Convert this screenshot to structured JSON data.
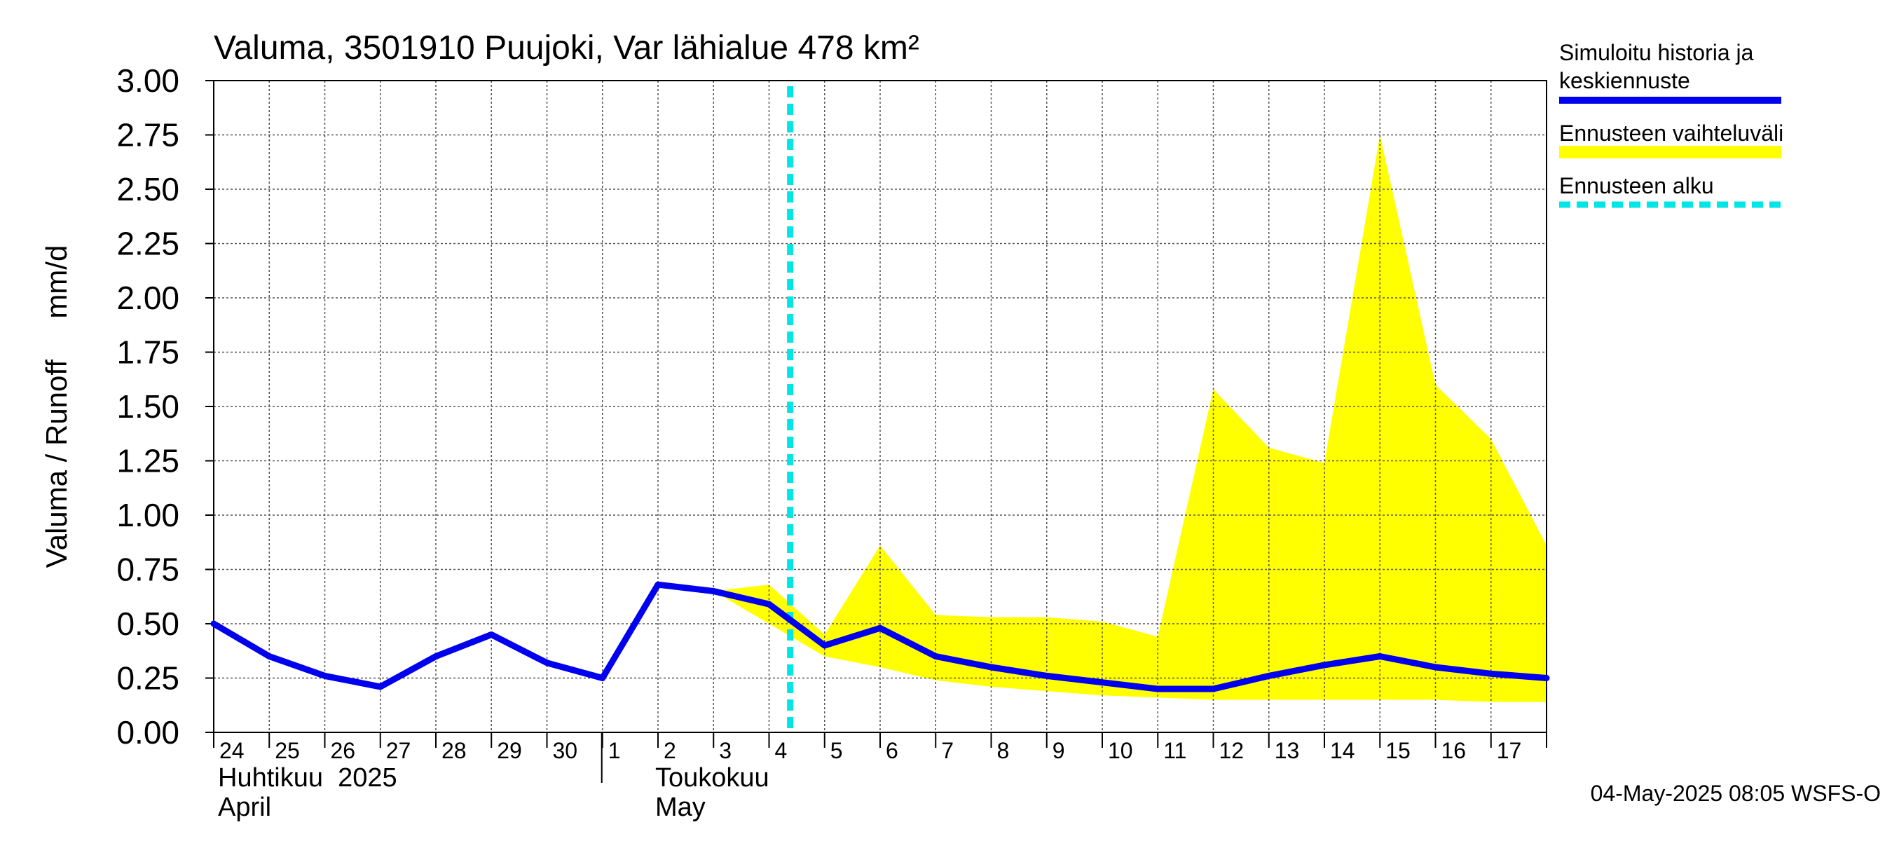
{
  "chart_data": {
    "type": "area",
    "title": "Valuma, 3501910 Puujoki, Var lähialue 478 km²",
    "ylabel": "Valuma / Runoff     mm/d",
    "ylim": [
      0,
      3
    ],
    "y_ticks": [
      "0.00",
      "0.25",
      "0.50",
      "0.75",
      "1.00",
      "1.25",
      "1.50",
      "1.75",
      "2.00",
      "2.25",
      "2.50",
      "2.75",
      "3.00"
    ],
    "x_day_labels": [
      "24",
      "25",
      "26",
      "27",
      "28",
      "29",
      "30",
      "1",
      "2",
      "3",
      "4",
      "5",
      "6",
      "7",
      "8",
      "9",
      "10",
      "11",
      "12",
      "13",
      "14",
      "15",
      "16",
      "17"
    ],
    "month_labels": [
      {
        "fi": "Huhtikuu  2025",
        "en": "April"
      },
      {
        "fi": "Toukokuu",
        "en": "May"
      }
    ],
    "x_start": "2025-04-24",
    "x_end": "2025-05-18",
    "forecast_start_day": 10.38,
    "series": [
      {
        "name": "Simuloitu historia ja keskiennuste",
        "color": "#0000ee",
        "points": [
          [
            0,
            0.5
          ],
          [
            1,
            0.35
          ],
          [
            2,
            0.26
          ],
          [
            3,
            0.21
          ],
          [
            4,
            0.35
          ],
          [
            5,
            0.45
          ],
          [
            6,
            0.32
          ],
          [
            7,
            0.25
          ],
          [
            8,
            0.68
          ],
          [
            9,
            0.65
          ],
          [
            10,
            0.59
          ],
          [
            11,
            0.4
          ],
          [
            12,
            0.48
          ],
          [
            13,
            0.35
          ],
          [
            14,
            0.3
          ],
          [
            15,
            0.26
          ],
          [
            16,
            0.23
          ],
          [
            17,
            0.2
          ],
          [
            18,
            0.2
          ],
          [
            19,
            0.26
          ],
          [
            20,
            0.31
          ],
          [
            21,
            0.35
          ],
          [
            22,
            0.3
          ],
          [
            23,
            0.27
          ],
          [
            24,
            0.25
          ]
        ]
      }
    ],
    "band": {
      "name": "Ennusteen vaihteluväli",
      "color": "#ffff00",
      "upper": [
        [
          9,
          0.65
        ],
        [
          10,
          0.68
        ],
        [
          11,
          0.45
        ],
        [
          12,
          0.86
        ],
        [
          13,
          0.54
        ],
        [
          14,
          0.53
        ],
        [
          15,
          0.53
        ],
        [
          16,
          0.51
        ],
        [
          17,
          0.44
        ],
        [
          18,
          1.58
        ],
        [
          19,
          1.31
        ],
        [
          20,
          1.24
        ],
        [
          21,
          2.75
        ],
        [
          22,
          1.6
        ],
        [
          23,
          1.35
        ],
        [
          24,
          0.86
        ]
      ],
      "lower": [
        [
          9,
          0.65
        ],
        [
          10,
          0.5
        ],
        [
          11,
          0.35
        ],
        [
          12,
          0.3
        ],
        [
          13,
          0.24
        ],
        [
          14,
          0.21
        ],
        [
          15,
          0.19
        ],
        [
          16,
          0.17
        ],
        [
          17,
          0.16
        ],
        [
          18,
          0.15
        ],
        [
          19,
          0.15
        ],
        [
          20,
          0.15
        ],
        [
          21,
          0.15
        ],
        [
          22,
          0.15
        ],
        [
          23,
          0.14
        ],
        [
          24,
          0.14
        ]
      ]
    },
    "legend": [
      {
        "label": "Simuloitu historia ja keskiennuste",
        "color": "#0000ee",
        "style": "solid"
      },
      {
        "label": "Ennusteen vaihteluväli",
        "color": "#ffff00",
        "style": "band"
      },
      {
        "label": "Ennusteen alku",
        "color": "#00e5e5",
        "style": "dashed"
      }
    ],
    "legend_position": "right",
    "footer": "04-May-2025 08:05 WSFS-O",
    "grid": true
  }
}
